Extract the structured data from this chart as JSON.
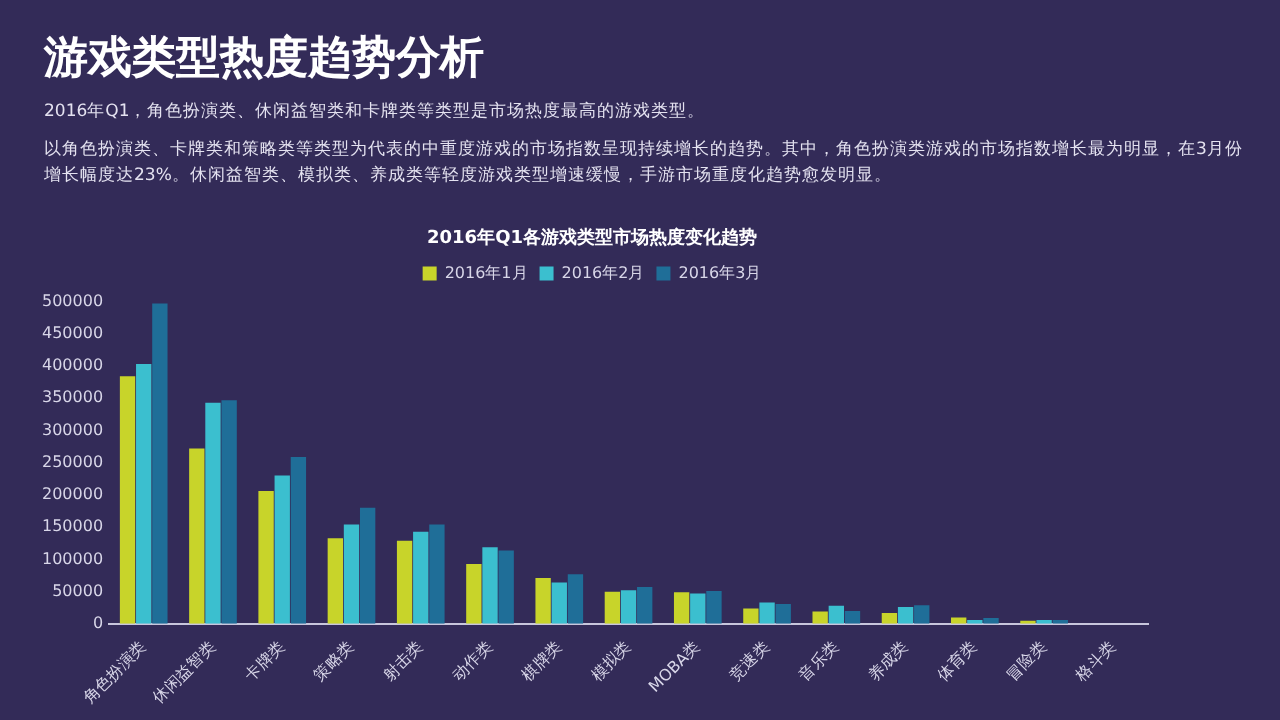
{
  "chart_data": {
    "type": "bar",
    "title": "游戏类型热度趋势分析",
    "subtitle": "2016年Q1各游戏类型市场热度变化趋势",
    "annotations": [
      "2016年Q1，角色扮演类、休闲益智类和卡牌类等类型是市场热度最高的游戏类型。",
      "以角色扮演类、卡牌类和策略类等类型为代表的中重度游戏的市场指数呈现持续增长的趋势。其中，角色扮演类游戏的市场指数增长最为明显，在3月份增长幅度达23%。休闲益智类、模拟类、养成类等轻度游戏类型增速缓慢，手游市场重度化趋势愈发明显。"
    ],
    "categories": [
      "角色扮演类",
      "休闲益智类",
      "卡牌类",
      "策略类",
      "射击类",
      "动作类",
      "棋牌类",
      "模拟类",
      "MOBA类",
      "竞速类",
      "音乐类",
      "养成类",
      "体育类",
      "冒险类",
      "格斗类"
    ],
    "series": [
      {
        "name": "2016年1月",
        "color": "#c8d42a",
        "values": [
          384000,
          272000,
          206000,
          133000,
          129000,
          93000,
          71000,
          50000,
          49000,
          24000,
          19000,
          17000,
          10000,
          5000,
          0
        ]
      },
      {
        "name": "2016年2月",
        "color": "#3bbfcf",
        "values": [
          403000,
          343000,
          230000,
          154000,
          143000,
          119000,
          64000,
          52000,
          47000,
          33000,
          28000,
          26000,
          6000,
          6000,
          0
        ]
      },
      {
        "name": "2016年3月",
        "color": "#1f6e98",
        "values": [
          497000,
          347000,
          259000,
          180000,
          154000,
          114000,
          77000,
          57000,
          51000,
          31000,
          20000,
          29000,
          9000,
          6000,
          0
        ]
      }
    ],
    "ylim": [
      0,
      500000
    ],
    "yticks": [
      0,
      50000,
      100000,
      150000,
      200000,
      250000,
      300000,
      350000,
      400000,
      450000,
      500000
    ],
    "grid": false,
    "legend": "top"
  }
}
